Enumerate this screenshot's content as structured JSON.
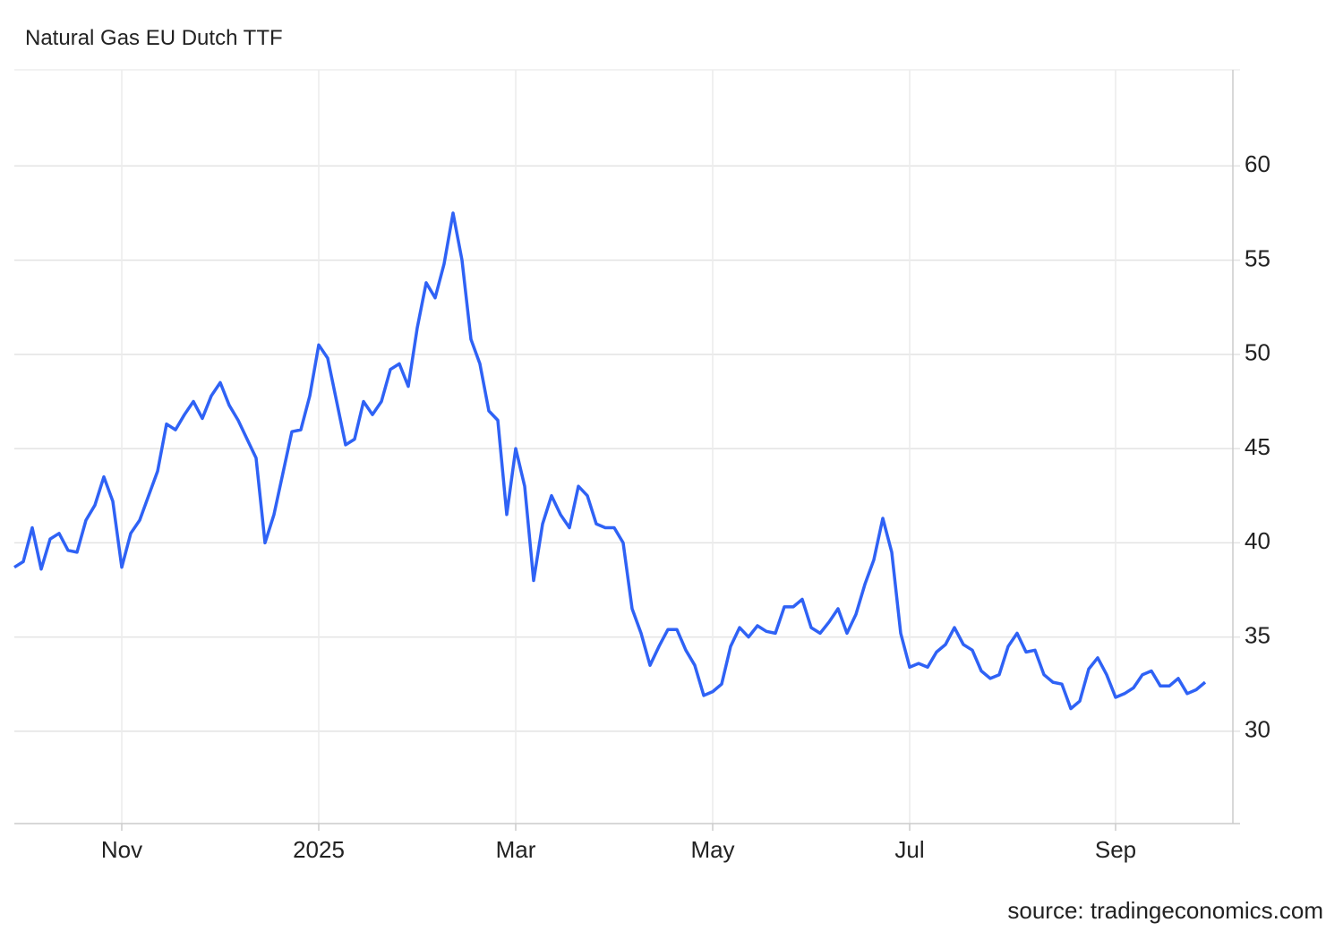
{
  "chart_data": {
    "type": "line",
    "title": "Natural Gas EU Dutch TTF",
    "source": "source: tradingeconomics.com",
    "categories": [
      null,
      null,
      null,
      null,
      null,
      null,
      null,
      null,
      null,
      null,
      null,
      null,
      "Nov",
      null,
      null,
      null,
      null,
      null,
      null,
      null,
      null,
      null,
      null,
      null,
      null,
      null,
      null,
      null,
      null,
      null,
      null,
      null,
      null,
      null,
      "2025",
      null,
      null,
      null,
      null,
      null,
      null,
      null,
      null,
      null,
      null,
      null,
      null,
      null,
      null,
      null,
      null,
      null,
      null,
      null,
      null,
      null,
      "Mar",
      null,
      null,
      null,
      null,
      null,
      null,
      null,
      null,
      null,
      null,
      null,
      null,
      null,
      null,
      null,
      null,
      null,
      null,
      null,
      null,
      null,
      "May",
      null,
      null,
      null,
      null,
      null,
      null,
      null,
      null,
      null,
      null,
      null,
      null,
      null,
      null,
      null,
      null,
      null,
      null,
      null,
      null,
      null,
      "Jul",
      null,
      null,
      null,
      null,
      null,
      null,
      null,
      null,
      null,
      null,
      null,
      null,
      null,
      null,
      null,
      null,
      null,
      null,
      null,
      null,
      null,
      null,
      "Sep",
      null,
      null,
      null,
      null,
      null,
      null,
      null,
      null,
      null,
      null
    ],
    "values": [
      38.7,
      39.0,
      40.8,
      38.6,
      40.2,
      40.5,
      39.6,
      39.5,
      41.2,
      42.0,
      43.5,
      42.2,
      38.7,
      40.5,
      41.2,
      42.5,
      43.8,
      46.3,
      46.0,
      46.8,
      47.5,
      46.6,
      47.8,
      48.5,
      47.3,
      46.5,
      45.5,
      44.5,
      40.0,
      41.5,
      43.7,
      45.9,
      46.0,
      47.8,
      50.5,
      49.8,
      47.5,
      45.2,
      45.5,
      47.5,
      46.8,
      47.5,
      49.2,
      49.5,
      48.3,
      51.4,
      53.8,
      53.0,
      54.8,
      57.5,
      55.0,
      50.8,
      49.5,
      47.0,
      46.5,
      41.5,
      45.0,
      43.0,
      38.0,
      41.0,
      42.5,
      41.5,
      40.8,
      43.0,
      42.5,
      41.0,
      40.8,
      40.8,
      40.0,
      36.5,
      35.2,
      33.5,
      34.5,
      35.4,
      35.4,
      34.3,
      33.5,
      31.9,
      32.1,
      32.5,
      34.5,
      35.5,
      35.0,
      35.6,
      35.3,
      35.2,
      36.6,
      36.6,
      37.0,
      35.5,
      35.2,
      35.8,
      36.5,
      35.2,
      36.2,
      37.8,
      39.1,
      41.3,
      39.5,
      35.2,
      33.4,
      33.6,
      33.4,
      34.2,
      34.6,
      35.5,
      34.6,
      34.3,
      33.2,
      32.8,
      33.0,
      34.5,
      35.2,
      34.2,
      34.3,
      33.0,
      32.6,
      32.5,
      31.2,
      31.6,
      33.3,
      33.9,
      33.0,
      31.8,
      32.0,
      32.3,
      33.0,
      33.2,
      32.4,
      32.4,
      32.8,
      32.0,
      32.2,
      32.6
    ],
    "color": "#2f62f5",
    "ylim": [
      25.1,
      65.1
    ],
    "yticks": [
      30,
      35,
      40,
      45,
      50,
      55,
      60
    ],
    "grid": true
  }
}
